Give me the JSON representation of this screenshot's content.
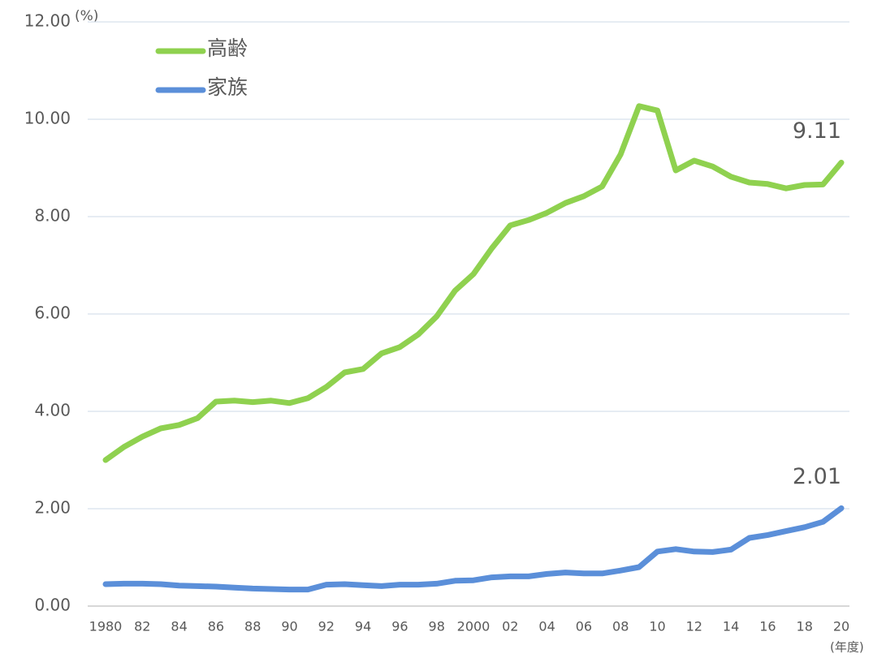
{
  "chart_data": {
    "type": "line",
    "y_unit": "(%)",
    "x_unit": "(年度)",
    "categories": [
      "1980",
      null,
      "82",
      null,
      "84",
      null,
      "86",
      null,
      "88",
      null,
      "90",
      null,
      "92",
      null,
      "94",
      null,
      "96",
      null,
      "98",
      null,
      "2000",
      null,
      "02",
      null,
      "04",
      null,
      "06",
      null,
      "08",
      null,
      "10",
      null,
      "12",
      null,
      "14",
      null,
      "16",
      null,
      "18",
      null,
      "20"
    ],
    "series": [
      {
        "name": "高齢",
        "color": "#8fd14f",
        "values": [
          3.0,
          3.27,
          3.48,
          3.65,
          3.72,
          3.86,
          4.2,
          4.22,
          4.19,
          4.22,
          4.17,
          4.27,
          4.5,
          4.8,
          4.87,
          5.19,
          5.32,
          5.58,
          5.95,
          6.48,
          6.82,
          7.35,
          7.82,
          7.93,
          8.08,
          8.28,
          8.42,
          8.62,
          9.28,
          10.27,
          10.18,
          8.95,
          9.15,
          9.03,
          8.82,
          8.7,
          8.67,
          8.58,
          8.65,
          8.66,
          9.11
        ]
      },
      {
        "name": "家族",
        "color": "#5b8fd9",
        "values": [
          0.45,
          0.46,
          0.46,
          0.45,
          0.42,
          0.41,
          0.4,
          0.38,
          0.36,
          0.35,
          0.34,
          0.34,
          0.44,
          0.45,
          0.43,
          0.41,
          0.44,
          0.44,
          0.46,
          0.52,
          0.53,
          0.59,
          0.61,
          0.61,
          0.66,
          0.69,
          0.67,
          0.67,
          0.73,
          0.8,
          1.12,
          1.17,
          1.12,
          1.11,
          1.16,
          1.4,
          1.46,
          1.54,
          1.62,
          1.73,
          2.01
        ]
      }
    ],
    "ylim": [
      0,
      12
    ],
    "yticks": [
      {
        "value": 0,
        "label": "0.00"
      },
      {
        "value": 2,
        "label": "2.00"
      },
      {
        "value": 4,
        "label": "4.00"
      },
      {
        "value": 6,
        "label": "6.00"
      },
      {
        "value": 8,
        "label": "8.00"
      },
      {
        "value": 10,
        "label": "10.00"
      },
      {
        "value": 12,
        "label": "12.00"
      }
    ],
    "grid": true,
    "legend": "top-left"
  }
}
